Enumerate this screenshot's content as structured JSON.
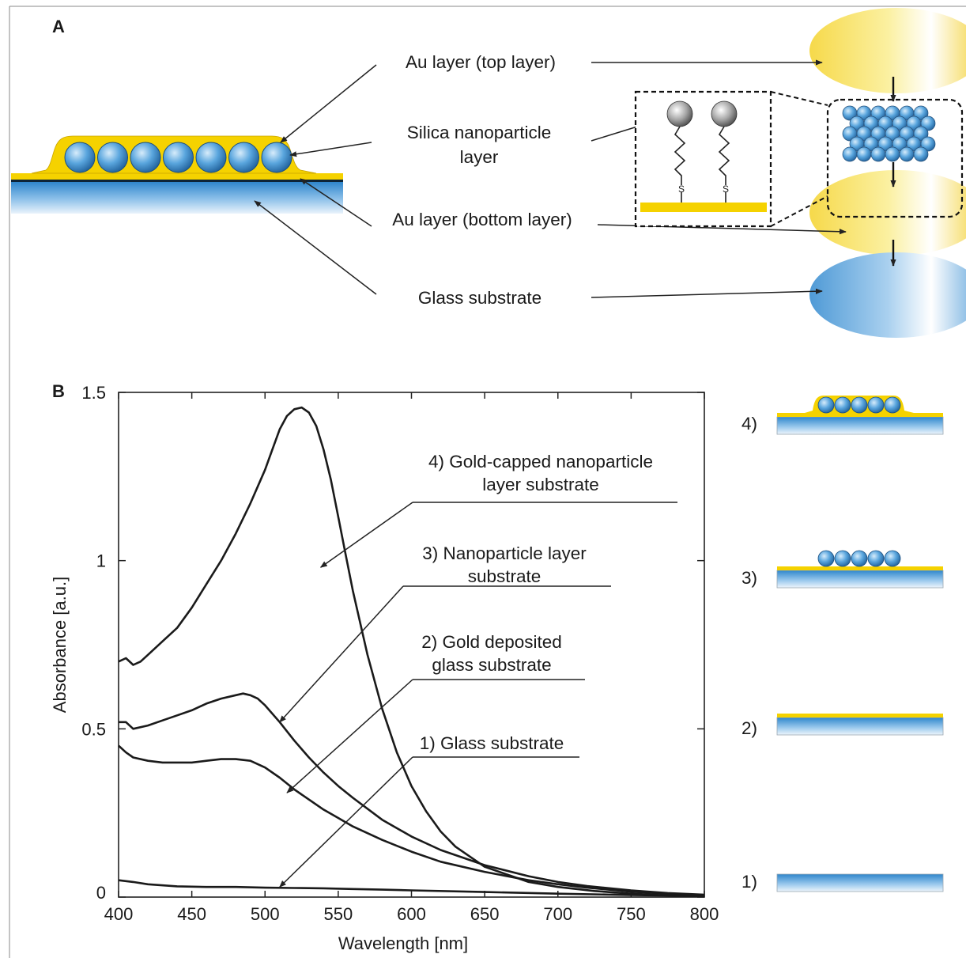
{
  "panel_a": {
    "letter": "A",
    "labels": {
      "au_top": "Au layer (top layer)",
      "silica_line1": "Silica nanoparticle",
      "silica_line2": "layer",
      "au_bottom": "Au layer (bottom layer)",
      "glass": "Glass substrate"
    },
    "linker_atom": "S",
    "colors": {
      "gold": "#f5d200",
      "blue": "#3a8fd0",
      "light_blue": "#cfe6f7",
      "sphere": "#5aa6de"
    }
  },
  "panel_b": {
    "letter": "B",
    "chart_data": {
      "type": "line",
      "xlabel": "Wavelength [nm]",
      "ylabel": "Absorbance [a.u.]",
      "xlim": [
        400,
        800
      ],
      "ylim": [
        0,
        1.5
      ],
      "xticks": [
        400,
        450,
        500,
        550,
        600,
        650,
        700,
        750,
        800
      ],
      "yticks": [
        {
          "value": 0,
          "label": "0"
        },
        {
          "value": 0.5,
          "label": "0.5"
        },
        {
          "value": 1,
          "label": "1"
        },
        {
          "value": 1.5,
          "label": "1.5"
        }
      ],
      "series": [
        {
          "name": "1) Glass substrate",
          "x": [
            400,
            410,
            420,
            440,
            460,
            480,
            500,
            520,
            540,
            560,
            580,
            600,
            650,
            700,
            750,
            800
          ],
          "y": [
            0.05,
            0.045,
            0.038,
            0.032,
            0.03,
            0.03,
            0.028,
            0.027,
            0.026,
            0.024,
            0.022,
            0.02,
            0.015,
            0.01,
            0.006,
            0.003
          ]
        },
        {
          "name": "2) Gold deposited glass substrate",
          "x": [
            400,
            405,
            410,
            420,
            430,
            440,
            450,
            460,
            470,
            480,
            490,
            500,
            510,
            520,
            530,
            540,
            550,
            560,
            580,
            600,
            620,
            650,
            680,
            700,
            720,
            750,
            775,
            800
          ],
          "y": [
            0.45,
            0.43,
            0.415,
            0.405,
            0.4,
            0.4,
            0.4,
            0.405,
            0.41,
            0.41,
            0.405,
            0.385,
            0.355,
            0.32,
            0.29,
            0.26,
            0.235,
            0.21,
            0.17,
            0.135,
            0.105,
            0.075,
            0.05,
            0.038,
            0.028,
            0.016,
            0.01,
            0.006
          ]
        },
        {
          "name": "3) Nanoparticle layer substrate",
          "x": [
            400,
            405,
            410,
            420,
            430,
            440,
            450,
            460,
            470,
            480,
            485,
            490,
            495,
            500,
            510,
            520,
            530,
            540,
            550,
            560,
            580,
            600,
            620,
            650,
            680,
            700,
            720,
            750,
            775,
            800
          ],
          "y": [
            0.52,
            0.52,
            0.5,
            0.51,
            0.525,
            0.54,
            0.555,
            0.575,
            0.59,
            0.6,
            0.605,
            0.6,
            0.59,
            0.57,
            0.52,
            0.465,
            0.415,
            0.37,
            0.33,
            0.295,
            0.23,
            0.18,
            0.14,
            0.095,
            0.062,
            0.045,
            0.033,
            0.02,
            0.012,
            0.007
          ]
        },
        {
          "name": "4) Gold-capped nanoparticle layer substrate",
          "x": [
            400,
            405,
            410,
            415,
            420,
            430,
            440,
            450,
            460,
            470,
            480,
            490,
            500,
            505,
            510,
            515,
            520,
            525,
            530,
            535,
            540,
            545,
            550,
            555,
            560,
            570,
            580,
            590,
            600,
            610,
            620,
            630,
            650,
            680,
            700,
            725,
            750,
            775,
            800
          ],
          "y": [
            0.7,
            0.71,
            0.69,
            0.7,
            0.72,
            0.76,
            0.8,
            0.86,
            0.93,
            1.0,
            1.08,
            1.17,
            1.27,
            1.33,
            1.39,
            1.43,
            1.45,
            1.455,
            1.44,
            1.4,
            1.33,
            1.24,
            1.13,
            1.02,
            0.91,
            0.72,
            0.56,
            0.43,
            0.33,
            0.255,
            0.195,
            0.15,
            0.09,
            0.045,
            0.03,
            0.018,
            0.01,
            0.005,
            0.003
          ]
        }
      ],
      "annotations": [
        {
          "id": "a4",
          "line1": "4) Gold-capped nanoparticle",
          "line2": "layer substrate",
          "target": [
            538,
            0.98
          ]
        },
        {
          "id": "a3",
          "line1": "3) Nanoparticle layer",
          "line2": "substrate",
          "target": [
            510,
            0.52
          ]
        },
        {
          "id": "a2",
          "line1": "2) Gold deposited",
          "line2": "glass substrate",
          "target": [
            515,
            0.31
          ]
        },
        {
          "id": "a1",
          "line1": "1) Glass substrate",
          "line2": "",
          "target": [
            510,
            0.03
          ]
        }
      ]
    },
    "side_labels": [
      "4)",
      "3)",
      "2)",
      "1)"
    ]
  }
}
